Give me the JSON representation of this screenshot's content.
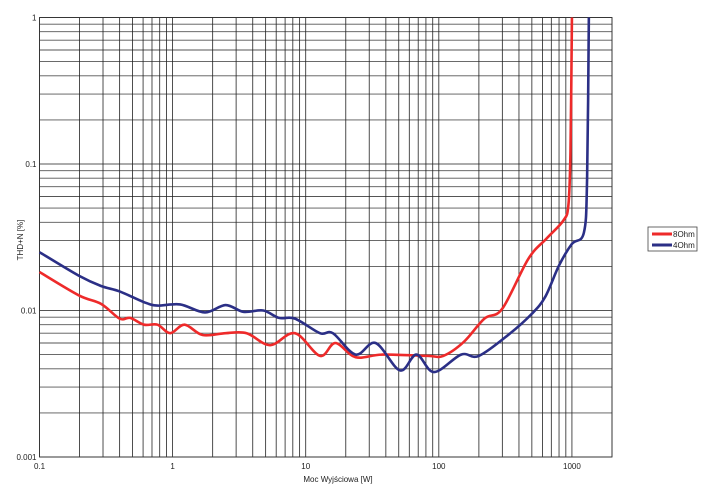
{
  "chart_data": {
    "type": "line",
    "title": "",
    "xlabel": "Moc Wyjściowa [W]",
    "ylabel": "THD+N [%]",
    "xscale": "log",
    "yscale": "log",
    "xlim": [
      0.1,
      2000
    ],
    "ylim": [
      0.001,
      1
    ],
    "grid": true,
    "legend_position": "right",
    "x_ticks": [
      {
        "v": 0.1,
        "label": "0.1"
      },
      {
        "v": 1,
        "label": "1"
      },
      {
        "v": 10,
        "label": "10"
      },
      {
        "v": 100,
        "label": "100"
      },
      {
        "v": 1000,
        "label": "1000"
      }
    ],
    "y_ticks": [
      {
        "v": 0.001,
        "label": "0.001"
      },
      {
        "v": 0.01,
        "label": "0.01"
      },
      {
        "v": 0.1,
        "label": "0.1"
      },
      {
        "v": 1,
        "label": "1"
      }
    ],
    "series": [
      {
        "name": "8Ohm",
        "color": "#ee2a2a",
        "x": [
          0.1,
          0.197,
          0.29,
          0.4,
          0.48,
          0.61,
          0.77,
          0.96,
          1.23,
          1.68,
          2.5,
          3.6,
          5.4,
          8.3,
          12.8,
          16.7,
          23.7,
          37.8,
          82,
          108,
          154,
          220,
          300,
          470,
          645,
          860,
          940,
          975,
          1000
        ],
        "y": [
          0.0183,
          0.0127,
          0.0111,
          0.0088,
          0.0089,
          0.008,
          0.008,
          0.007,
          0.008,
          0.0068,
          0.007,
          0.007,
          0.0058,
          0.007,
          0.0049,
          0.006,
          0.0048,
          0.005,
          0.0049,
          0.0049,
          0.0061,
          0.0088,
          0.0103,
          0.0225,
          0.031,
          0.041,
          0.052,
          0.12,
          1
        ]
      },
      {
        "name": "4Ohm",
        "color": "#2b2f86",
        "x": [
          0.1,
          0.197,
          0.29,
          0.4,
          0.61,
          0.77,
          1.14,
          1.75,
          2.5,
          3.4,
          4.8,
          6.3,
          8.3,
          12.8,
          16,
          23.7,
          33.5,
          51,
          68,
          92,
          147,
          200,
          338,
          500,
          630,
          800,
          1000,
          1230,
          1300,
          1340
        ],
        "y": [
          0.025,
          0.0173,
          0.0147,
          0.0135,
          0.0114,
          0.0108,
          0.011,
          0.0097,
          0.0109,
          0.0098,
          0.01,
          0.0089,
          0.0088,
          0.007,
          0.007,
          0.005,
          0.006,
          0.0039,
          0.005,
          0.0038,
          0.005,
          0.0049,
          0.0069,
          0.0095,
          0.0124,
          0.0203,
          0.0285,
          0.034,
          0.08,
          1
        ]
      }
    ]
  }
}
